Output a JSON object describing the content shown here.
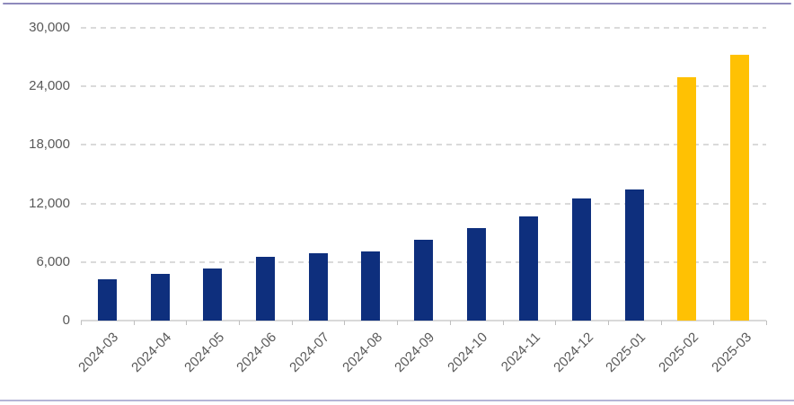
{
  "chart_data": {
    "type": "bar",
    "title": "",
    "xlabel": "",
    "ylabel": "",
    "categories": [
      "2024-03",
      "2024-04",
      "2024-05",
      "2024-06",
      "2024-07",
      "2024-08",
      "2024-09",
      "2024-10",
      "2024-11",
      "2024-12",
      "2025-01",
      "2025-02",
      "2025-03"
    ],
    "values": [
      4250,
      4800,
      5350,
      6500,
      6900,
      7100,
      8250,
      9500,
      10650,
      12500,
      13400,
      24900,
      27200
    ],
    "highlight_categories": [
      "2025-02",
      "2025-03"
    ],
    "ylim": [
      0,
      30000
    ],
    "ytick_interval": 6000,
    "ytick_labels": [
      "0",
      "6,000",
      "12,000",
      "18,000",
      "24,000",
      "30,000"
    ],
    "grid": "horizontal-dashed",
    "legend": "none",
    "x_label_rotation_deg": 45
  },
  "colors": {
    "bar_default": "#0e2f7d",
    "bar_highlight": "#ffc103",
    "gridline": "#dadada",
    "axis_line": "#d9d9d9",
    "tick": "#bfbfbf",
    "axis_text": "#595959",
    "frame_top": "#8e8abc",
    "frame_bottom": "#b5b5d6",
    "background": "#ffffff"
  }
}
